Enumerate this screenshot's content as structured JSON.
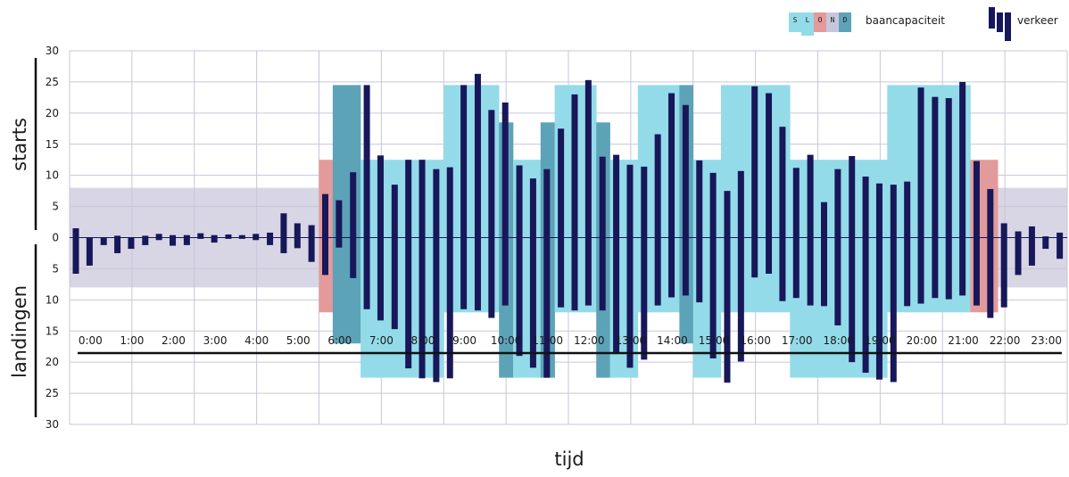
{
  "chart_data": {
    "type": "bar",
    "title": "",
    "xlabel": "tijd",
    "ylabel_top": "starts",
    "ylabel_bottom": "landingen",
    "ylim": [
      -30,
      30
    ],
    "y_ticks": [
      30,
      25,
      20,
      15,
      10,
      5,
      0,
      5,
      10,
      15,
      20,
      25,
      30
    ],
    "categories": [
      "0:00",
      "1:00",
      "2:00",
      "3:00",
      "4:00",
      "5:00",
      "6:00",
      "7:00",
      "8:00",
      "9:00",
      "10:00",
      "11:00",
      "12:00",
      "13:00",
      "14:00",
      "15:00",
      "16:00",
      "17:00",
      "18:00",
      "19:00",
      "20:00",
      "21:00",
      "22:00",
      "23:00"
    ],
    "legend": {
      "capacity_label": "baancapaciteit",
      "capacity_letters": [
        "S",
        "L",
        "O",
        "N",
        "D"
      ],
      "traffic_label": "verkeer",
      "position": "top-right"
    },
    "night_band": {
      "starts": 8,
      "landingen": 8
    },
    "colors": {
      "S": "#93dbe8",
      "L": "#93dbe8",
      "O": "#e39a9a",
      "N": "#c8c6dc",
      "D": "#5da3b8",
      "traffic": "#17175a",
      "night_band": "#d8d6e4",
      "grid": "#c8c6d8"
    },
    "capacity": [
      {
        "start": 6.0,
        "end": 6.33,
        "starts": 12.5,
        "landingen": 12,
        "type": "O"
      },
      {
        "start": 6.33,
        "end": 7.0,
        "starts": 24.5,
        "landingen": 17,
        "type": "D"
      },
      {
        "start": 7.0,
        "end": 9.0,
        "starts": 12.5,
        "landingen": 22.5,
        "type": "S"
      },
      {
        "start": 9.0,
        "end": 10.33,
        "starts": 24.5,
        "landingen": 12,
        "type": "S"
      },
      {
        "start": 10.33,
        "end": 10.67,
        "starts": 18.5,
        "landingen": 22.5,
        "type": "D"
      },
      {
        "start": 10.67,
        "end": 11.33,
        "starts": 12.5,
        "landingen": 22.5,
        "type": "S"
      },
      {
        "start": 11.33,
        "end": 11.67,
        "starts": 18.5,
        "landingen": 22.5,
        "type": "D"
      },
      {
        "start": 11.67,
        "end": 12.67,
        "starts": 24.5,
        "landingen": 12,
        "type": "S"
      },
      {
        "start": 12.67,
        "end": 13.0,
        "starts": 18.5,
        "landingen": 22.5,
        "type": "D"
      },
      {
        "start": 13.0,
        "end": 13.67,
        "starts": 12.5,
        "landingen": 22.5,
        "type": "S"
      },
      {
        "start": 13.67,
        "end": 14.67,
        "starts": 24.5,
        "landingen": 12,
        "type": "S"
      },
      {
        "start": 14.67,
        "end": 15.0,
        "starts": 24.5,
        "landingen": 17,
        "type": "D"
      },
      {
        "start": 15.0,
        "end": 15.67,
        "starts": 12.5,
        "landingen": 22.5,
        "type": "S"
      },
      {
        "start": 15.67,
        "end": 17.33,
        "starts": 24.5,
        "landingen": 12,
        "type": "S"
      },
      {
        "start": 17.33,
        "end": 19.67,
        "starts": 12.5,
        "landingen": 22.5,
        "type": "S"
      },
      {
        "start": 19.67,
        "end": 21.67,
        "starts": 24.5,
        "landingen": 12,
        "type": "S"
      },
      {
        "start": 21.67,
        "end": 22.33,
        "starts": 12.5,
        "landingen": 12,
        "type": "O"
      }
    ],
    "traffic": [
      {
        "t": 0.0,
        "starts": 1.5,
        "landingen": 5.8
      },
      {
        "t": 0.33,
        "starts": 0,
        "landingen": 4.5
      },
      {
        "t": 0.67,
        "starts": 0,
        "landingen": 1.2
      },
      {
        "t": 1.0,
        "starts": 0.3,
        "landingen": 2.5
      },
      {
        "t": 1.33,
        "starts": 0,
        "landingen": 1.8
      },
      {
        "t": 1.67,
        "starts": 0.3,
        "landingen": 1.2
      },
      {
        "t": 2.0,
        "starts": 0.6,
        "landingen": 0.4
      },
      {
        "t": 2.33,
        "starts": 0.4,
        "landingen": 1.3
      },
      {
        "t": 2.67,
        "starts": 0.4,
        "landingen": 1.2
      },
      {
        "t": 3.0,
        "starts": 0.7,
        "landingen": 0.2
      },
      {
        "t": 3.33,
        "starts": 0.4,
        "landingen": 0.8
      },
      {
        "t": 3.67,
        "starts": 0.5,
        "landingen": 0.2
      },
      {
        "t": 4.0,
        "starts": 0.4,
        "landingen": 0.2
      },
      {
        "t": 4.33,
        "starts": 0.6,
        "landingen": 0.4
      },
      {
        "t": 4.67,
        "starts": 0.8,
        "landingen": 1.2
      },
      {
        "t": 5.0,
        "starts": 3.9,
        "landingen": 2.5
      },
      {
        "t": 5.33,
        "starts": 2.3,
        "landingen": 1.7
      },
      {
        "t": 5.67,
        "starts": 2.0,
        "landingen": 3.9
      },
      {
        "t": 6.0,
        "starts": 7.0,
        "landingen": 6.0
      },
      {
        "t": 6.33,
        "starts": 6.0,
        "landingen": 1.6
      },
      {
        "t": 6.67,
        "starts": 10.5,
        "landingen": 6.5
      },
      {
        "t": 7.0,
        "starts": 24.5,
        "landingen": 11.5
      },
      {
        "t": 7.33,
        "starts": 13.2,
        "landingen": 13.3
      },
      {
        "t": 7.67,
        "starts": 8.5,
        "landingen": 14.7
      },
      {
        "t": 8.0,
        "starts": 12.5,
        "landingen": 21.0
      },
      {
        "t": 8.33,
        "starts": 12.5,
        "landingen": 22.6
      },
      {
        "t": 8.67,
        "starts": 11.0,
        "landingen": 23.2
      },
      {
        "t": 9.0,
        "starts": 11.3,
        "landingen": 22.6
      },
      {
        "t": 9.33,
        "starts": 24.5,
        "landingen": 11.5
      },
      {
        "t": 9.67,
        "starts": 26.3,
        "landingen": 11.7
      },
      {
        "t": 10.0,
        "starts": 20.5,
        "landingen": 12.9
      },
      {
        "t": 10.33,
        "starts": 21.7,
        "landingen": 10.9
      },
      {
        "t": 10.67,
        "starts": 11.6,
        "landingen": 19.0
      },
      {
        "t": 11.0,
        "starts": 9.5,
        "landingen": 20.9
      },
      {
        "t": 11.33,
        "starts": 11.0,
        "landingen": 22.5
      },
      {
        "t": 11.67,
        "starts": 17.5,
        "landingen": 11.2
      },
      {
        "t": 12.0,
        "starts": 23.0,
        "landingen": 11.7
      },
      {
        "t": 12.33,
        "starts": 25.3,
        "landingen": 10.9
      },
      {
        "t": 12.67,
        "starts": 13.0,
        "landingen": 11.7
      },
      {
        "t": 13.0,
        "starts": 13.3,
        "landingen": 18.7
      },
      {
        "t": 13.33,
        "starts": 11.7,
        "landingen": 20.9
      },
      {
        "t": 13.67,
        "starts": 11.4,
        "landingen": 19.6
      },
      {
        "t": 14.0,
        "starts": 16.6,
        "landingen": 10.9
      },
      {
        "t": 14.33,
        "starts": 23.2,
        "landingen": 9.6
      },
      {
        "t": 14.67,
        "starts": 21.3,
        "landingen": 9.3
      },
      {
        "t": 15.0,
        "starts": 12.4,
        "landingen": 10.4
      },
      {
        "t": 15.33,
        "starts": 10.4,
        "landingen": 19.4
      },
      {
        "t": 15.67,
        "starts": 7.5,
        "landingen": 23.3
      },
      {
        "t": 16.0,
        "starts": 10.7,
        "landingen": 19.9
      },
      {
        "t": 16.33,
        "starts": 24.3,
        "landingen": 6.4
      },
      {
        "t": 16.67,
        "starts": 23.2,
        "landingen": 5.8
      },
      {
        "t": 17.0,
        "starts": 17.8,
        "landingen": 10.2
      },
      {
        "t": 17.33,
        "starts": 11.2,
        "landingen": 9.7
      },
      {
        "t": 17.67,
        "starts": 13.3,
        "landingen": 10.9
      },
      {
        "t": 18.0,
        "starts": 5.7,
        "landingen": 11.0
      },
      {
        "t": 18.33,
        "starts": 11.0,
        "landingen": 14.1
      },
      {
        "t": 18.67,
        "starts": 13.1,
        "landingen": 20.0
      },
      {
        "t": 19.0,
        "starts": 9.8,
        "landingen": 21.7
      },
      {
        "t": 19.33,
        "starts": 8.7,
        "landingen": 22.8
      },
      {
        "t": 19.67,
        "starts": 8.5,
        "landingen": 23.2
      },
      {
        "t": 20.0,
        "starts": 9.0,
        "landingen": 11.0
      },
      {
        "t": 20.33,
        "starts": 24.1,
        "landingen": 10.6
      },
      {
        "t": 20.67,
        "starts": 22.6,
        "landingen": 9.7
      },
      {
        "t": 21.0,
        "starts": 22.4,
        "landingen": 9.9
      },
      {
        "t": 21.33,
        "starts": 25.0,
        "landingen": 9.3
      },
      {
        "t": 21.67,
        "starts": 12.3,
        "landingen": 10.9
      },
      {
        "t": 22.0,
        "starts": 7.8,
        "landingen": 12.9
      },
      {
        "t": 22.33,
        "starts": 2.3,
        "landingen": 11.2
      },
      {
        "t": 22.67,
        "starts": 1.0,
        "landingen": 6.0
      },
      {
        "t": 23.0,
        "starts": 1.8,
        "landingen": 4.5
      },
      {
        "t": 23.33,
        "starts": 0.2,
        "landingen": 1.8
      },
      {
        "t": 23.67,
        "starts": 0.8,
        "landingen": 3.4
      }
    ]
  }
}
